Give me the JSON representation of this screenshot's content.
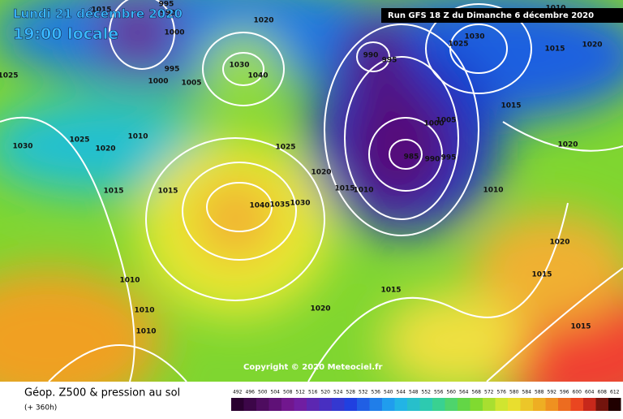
{
  "header": {
    "date": "Lundi 21 décembre 2020",
    "time": "19:00 locale",
    "run": "Run GFS 18 Z du Dimanche 6 décembre 2020"
  },
  "copyright": "Copyright © 2020 Meteociel.fr",
  "legend": {
    "title": "Géop. Z500 & pression au sol",
    "subtitle": "(+ 360h)",
    "scale": [
      492,
      496,
      500,
      504,
      508,
      512,
      516,
      520,
      524,
      528,
      532,
      536,
      540,
      544,
      548,
      552,
      556,
      560,
      564,
      568,
      572,
      576,
      580,
      584,
      588,
      592,
      596,
      600,
      604,
      608,
      612
    ]
  },
  "isobar_labels": [
    "1015",
    "995",
    "990",
    "1000",
    "1020",
    "995",
    "1000",
    "1005",
    "1030",
    "1040",
    "1025",
    "1030",
    "1025",
    "1020",
    "1010",
    "1015",
    "1015",
    "1025",
    "1040",
    "1035",
    "1030",
    "1020",
    "1015",
    "1010",
    "990",
    "995",
    "1000",
    "1005",
    "985",
    "990",
    "995",
    "1010",
    "1025",
    "1030",
    "1020",
    "1015",
    "1015",
    "1020",
    "1010",
    "1010",
    "1010",
    "1020",
    "1015",
    "1015",
    "1020",
    "1015",
    "1010"
  ]
}
